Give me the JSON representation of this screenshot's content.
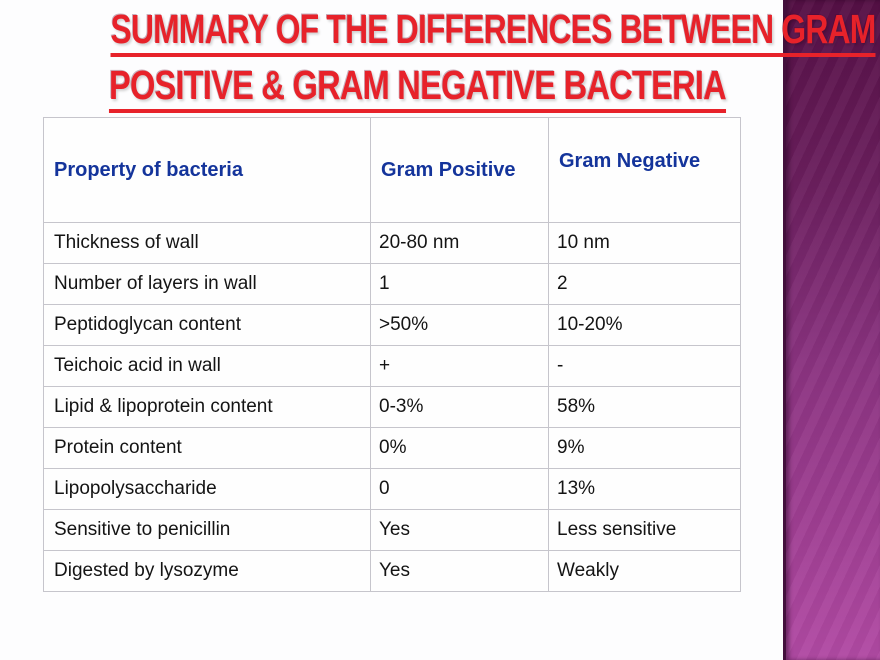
{
  "slide": {
    "title": {
      "line1": "SUMMARY OF THE DIFFERENCES BETWEEN GRAM",
      "line2": "POSITIVE & GRAM NEGATIVE BACTERIA"
    },
    "colors": {
      "title_red": "#e7222a",
      "header_blue": "#14349b",
      "strip_top": "#551045",
      "strip_mid": "#8a3380",
      "strip_bottom": "#b14aa4"
    }
  },
  "table": {
    "headers": [
      "Property of bacteria",
      "Gram Positive",
      "Gram Negative"
    ],
    "rows": [
      [
        "Thickness of wall",
        "20-80 nm",
        "10 nm"
      ],
      [
        "Number of layers in wall",
        "1",
        "2"
      ],
      [
        "Peptidoglycan content",
        ">50%",
        "10-20%"
      ],
      [
        "Teichoic acid in wall",
        "+",
        "-"
      ],
      [
        "Lipid & lipoprotein content",
        "0-3%",
        "58%"
      ],
      [
        "Protein content",
        "0%",
        "9%"
      ],
      [
        "Lipopolysaccharide",
        "0",
        "13%"
      ],
      [
        "Sensitive to penicillin",
        "Yes",
        "Less sensitive"
      ],
      [
        "Digested by lysozyme",
        "Yes",
        "Weakly"
      ]
    ]
  }
}
